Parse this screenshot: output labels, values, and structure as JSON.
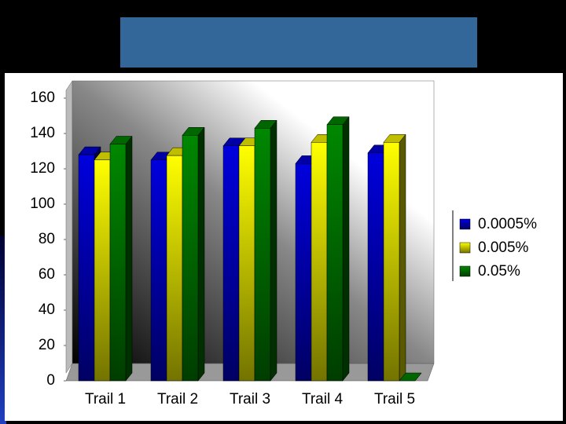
{
  "chart_data": {
    "type": "bar",
    "categories": [
      "Trail 1",
      "Trail 2",
      "Trail 3",
      "Trail 4",
      "Trail 5"
    ],
    "series": [
      {
        "name": "0.0005%",
        "color": "#0000dd",
        "values": [
          128,
          125,
          133,
          123,
          129
        ]
      },
      {
        "name": "0.005%",
        "color": "#ffff00",
        "values": [
          125,
          127.5,
          133,
          135,
          135
        ]
      },
      {
        "name": "0.05%",
        "color": "#008800",
        "values": [
          134,
          139,
          143,
          145,
          0
        ]
      }
    ],
    "ylim": [
      0,
      160
    ],
    "yticks": [
      0,
      20,
      40,
      60,
      80,
      100,
      120,
      140,
      160
    ],
    "legend": "right"
  }
}
